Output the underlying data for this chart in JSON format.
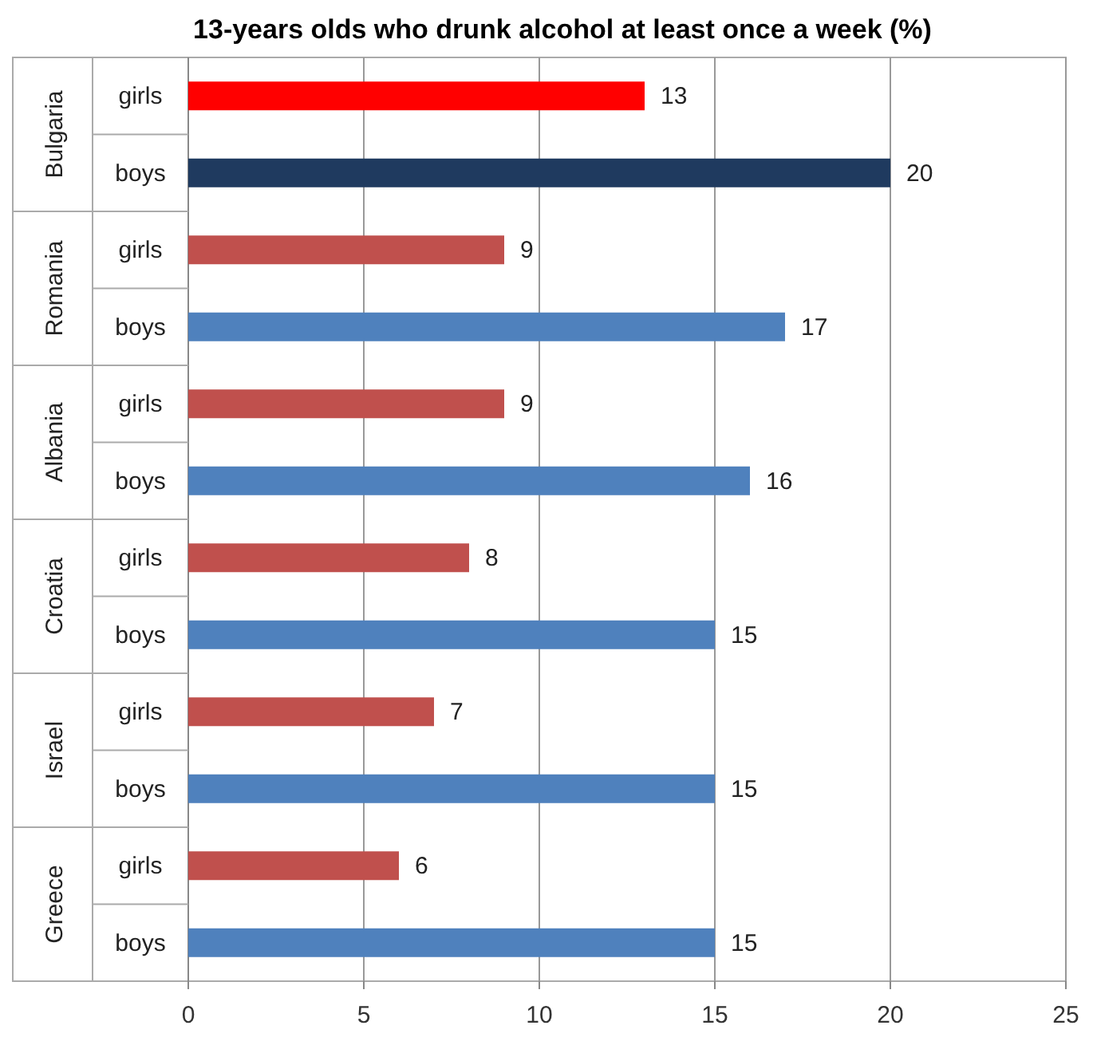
{
  "chart_data": {
    "type": "bar",
    "orientation": "horizontal",
    "title": "13-years olds who drunk alcohol at least once a week (%)",
    "categories": [
      "girls",
      "boys",
      "girls",
      "boys",
      "girls",
      "boys",
      "girls",
      "boys",
      "girls",
      "boys",
      "girls",
      "boys"
    ],
    "values": [
      13,
      20,
      9,
      17,
      9,
      16,
      8,
      15,
      7,
      15,
      6,
      15
    ],
    "colors": [
      "#ff0000",
      "#1f3a5f",
      "#c0504d",
      "#4f81bd",
      "#c0504d",
      "#4f81bd",
      "#c0504d",
      "#4f81bd",
      "#c0504d",
      "#4f81bd",
      "#c0504d",
      "#4f81bd"
    ],
    "annotations": [
      "Bulgaria",
      "Romania",
      "Albania",
      "Croatia",
      "Israel",
      "Greece"
    ],
    "xlim": [
      0,
      25
    ],
    "xticks": [
      0,
      5,
      10,
      15,
      20,
      25
    ],
    "grid": "x",
    "data_labels": true
  }
}
